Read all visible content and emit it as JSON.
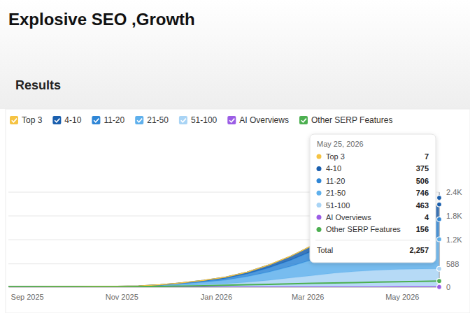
{
  "header": {
    "title": "Explosive SEO ,Growth",
    "section": "Results"
  },
  "chart_data": {
    "type": "area",
    "stacked": true,
    "grid": true,
    "legend": "top",
    "x": [
      "2025-08-20",
      "2025-09-03",
      "2025-09-17",
      "2025-10-01",
      "2025-10-15",
      "2025-10-29",
      "2025-11-12",
      "2025-11-26",
      "2025-12-10",
      "2025-12-24",
      "2026-01-07",
      "2026-01-21",
      "2026-02-04",
      "2026-02-18",
      "2026-03-04",
      "2026-03-18",
      "2026-04-01",
      "2026-04-15",
      "2026-04-29",
      "2026-05-13",
      "2026-05-25"
    ],
    "series": [
      {
        "name": "Top 3",
        "color": "#f5c343",
        "type": "area",
        "values": [
          0,
          0,
          0,
          0,
          0,
          0,
          0,
          0,
          0,
          0,
          0,
          1,
          1,
          1,
          2,
          2,
          3,
          4,
          5,
          6,
          7
        ]
      },
      {
        "name": "4-10",
        "color": "#1a5fae",
        "type": "area",
        "values": [
          1,
          1,
          1,
          1,
          1,
          2,
          2,
          4,
          8,
          14,
          24,
          40,
          65,
          95,
          135,
          175,
          210,
          250,
          295,
          335,
          375
        ]
      },
      {
        "name": "11-20",
        "color": "#2f86d6",
        "type": "area",
        "values": [
          2,
          2,
          2,
          3,
          3,
          3,
          5,
          10,
          18,
          30,
          45,
          70,
          110,
          160,
          220,
          290,
          340,
          390,
          440,
          480,
          506
        ]
      },
      {
        "name": "21-50",
        "color": "#5fb0ec",
        "type": "area",
        "values": [
          5,
          5,
          6,
          6,
          7,
          8,
          11,
          22,
          40,
          64,
          95,
          145,
          210,
          290,
          400,
          480,
          550,
          610,
          660,
          710,
          746
        ]
      },
      {
        "name": "51-100",
        "color": "#a9d4f5",
        "type": "area",
        "values": [
          7,
          7,
          7,
          8,
          9,
          9,
          12,
          24,
          44,
          62,
          86,
          124,
          174,
          234,
          293,
          353,
          397,
          426,
          450,
          459,
          463
        ]
      },
      {
        "name": "AI Overviews",
        "color": "#9b5de5",
        "type": "line",
        "values": [
          0,
          0,
          0,
          0,
          0,
          0,
          0,
          0,
          0,
          0,
          0,
          0,
          0,
          0,
          1,
          1,
          2,
          2,
          3,
          3,
          4
        ]
      },
      {
        "name": "Other SERP Features",
        "color": "#4caf50",
        "type": "line",
        "values": [
          8,
          8,
          8,
          9,
          9,
          10,
          12,
          18,
          26,
          36,
          48,
          60,
          72,
          84,
          96,
          106,
          116,
          126,
          136,
          146,
          156
        ]
      }
    ],
    "xlim": [
      "2025-08-20",
      "2026-05-25"
    ],
    "xticks": [
      {
        "value": "2025-09",
        "label": "Sep 2025"
      },
      {
        "value": "2025-11",
        "label": "Nov 2025"
      },
      {
        "value": "2026-01",
        "label": "Jan 2026"
      },
      {
        "value": "2026-03",
        "label": "Mar 2026"
      },
      {
        "value": "2026-05",
        "label": "May 2026"
      }
    ],
    "ylim": [
      0,
      2400
    ],
    "yticks": [
      0,
      588,
      {
        "value": 1200,
        "label": "1.2K"
      },
      {
        "value": 1800,
        "label": "1.8K"
      },
      {
        "value": 2400,
        "label": "2.4K"
      }
    ]
  },
  "tooltip": {
    "date": "May 25, 2026",
    "rows": [
      {
        "label": "Top 3",
        "value": 7
      },
      {
        "label": "4-10",
        "value": 375
      },
      {
        "label": "11-20",
        "value": 506
      },
      {
        "label": "21-50",
        "value": 746
      },
      {
        "label": "51-100",
        "value": 463
      },
      {
        "label": "AI Overviews",
        "value": 4
      },
      {
        "label": "Other SERP Features",
        "value": 156
      }
    ],
    "total": {
      "label": "Total",
      "value": 2257,
      "value_label": "2,257"
    }
  }
}
